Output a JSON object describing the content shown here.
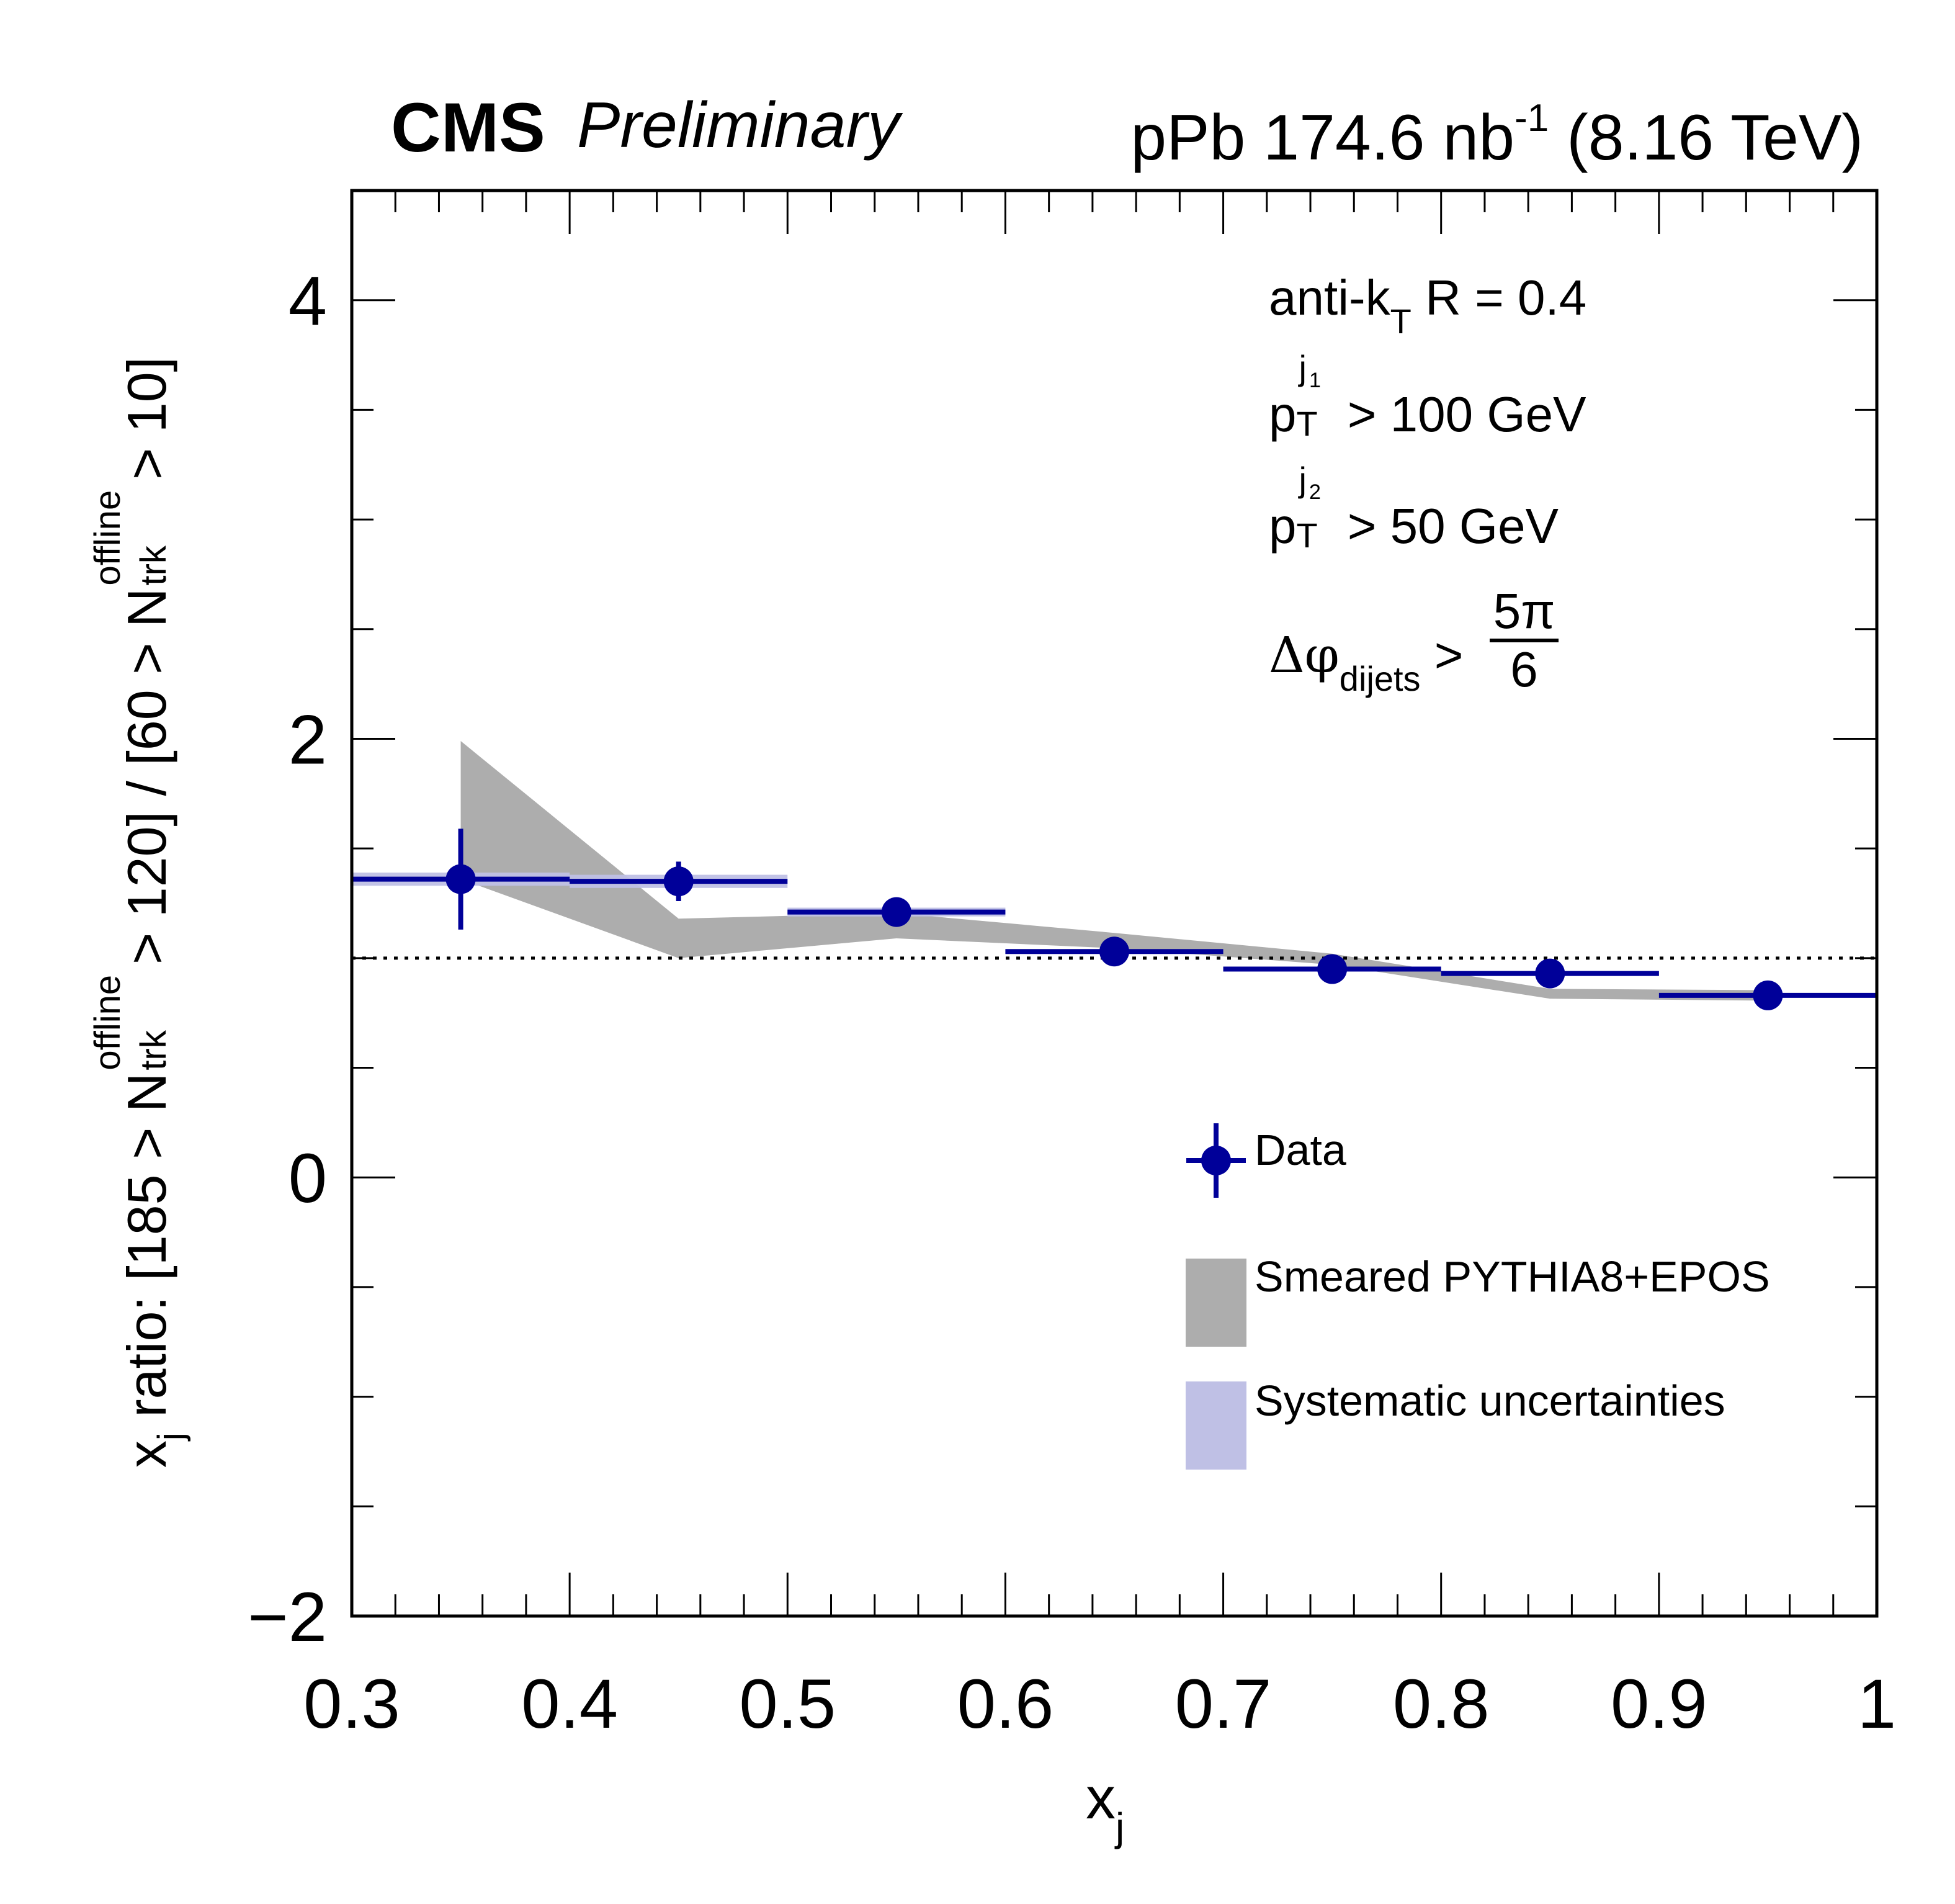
{
  "header": {
    "experiment": "CMS",
    "status": "Preliminary",
    "lumi_prefix": "pPb 174.6 nb",
    "lumi_exp": "-1",
    "lumi_suffix": " (8.16 TeV)"
  },
  "annotations": {
    "line1_main": "anti-k",
    "line1_sub": "T",
    "line1_rest": " R = 0.4",
    "line2_p": "p",
    "line2_sup": "j",
    "line2_supsub": "1",
    "line2_sub": "T",
    "line2_rest": " > 100 GeV",
    "line3_p": "p",
    "line3_sup": "j",
    "line3_supsub": "2",
    "line3_sub": "T",
    "line3_rest": " > 50 GeV",
    "line4_main": "Δφ",
    "line4_sub": "dijets",
    "line4_gt": " > ",
    "line4_num": "5π",
    "line4_den": "6"
  },
  "axis_labels": {
    "x_main": "x",
    "x_sub": "j",
    "y_part1": "x",
    "y_part1_sub": "j",
    "y_part2": " ratio: [185 > N",
    "y_sup": "offline",
    "y_sub": "trk",
    "y_part3": " > 120] / [60 > N",
    "y_part4": " > 10]"
  },
  "legend": {
    "data_label": "Data",
    "model_label": "Smeared PYTHIA8+EPOS",
    "syst_label": "Systematic uncertainties"
  },
  "colors": {
    "data": "#000099",
    "model_band": "#adadad",
    "syst_band": "#bfc0e5",
    "axis": "#000000"
  },
  "chart_data": {
    "type": "scatter",
    "title": "CMS Preliminary — pPb 174.6 nb^-1 (8.16 TeV)",
    "xlabel": "x_j",
    "ylabel": "x_j ratio: [185 > N_trk^offline > 120] / [60 > N_trk^offline > 10]",
    "xlim": [
      0.3,
      1.0
    ],
    "ylim": [
      -2,
      4.5
    ],
    "x_ticks": [
      0.3,
      0.4,
      0.5,
      0.6,
      0.7,
      0.8,
      0.9,
      1.0
    ],
    "x_tick_labels": [
      "0.3",
      "0.4",
      "0.5",
      "0.6",
      "0.7",
      "0.8",
      "0.9",
      "1"
    ],
    "x_minor_step": 0.02,
    "y_ticks": [
      -2,
      0,
      2,
      4
    ],
    "y_tick_labels": [
      "−2",
      "0",
      "2",
      "4"
    ],
    "y_minor_step": 0.5,
    "reference_line": 1.0,
    "grid": false,
    "legend_position": "bottom-right",
    "series": [
      {
        "name": "Data",
        "kind": "points",
        "x": [
          0.35,
          0.45,
          0.55,
          0.65,
          0.75,
          0.85,
          0.95
        ],
        "x_err": [
          0.05,
          0.05,
          0.05,
          0.05,
          0.05,
          0.05,
          0.05
        ],
        "y": [
          1.36,
          1.35,
          1.21,
          1.03,
          0.95,
          0.93,
          0.83
        ],
        "y_err_stat": [
          0.23,
          0.09,
          0.02,
          0.02,
          0.02,
          0.02,
          0.02
        ],
        "y_err_syst": [
          0.03,
          0.03,
          0.02,
          0.01,
          0.01,
          0.01,
          0.01
        ]
      },
      {
        "name": "Smeared PYTHIA8+EPOS",
        "kind": "band",
        "x": [
          0.35,
          0.45,
          0.55,
          0.65,
          0.75,
          0.85,
          0.95
        ],
        "y_low": [
          1.36,
          1.0,
          1.09,
          1.045,
          0.97,
          0.815,
          0.806
        ],
        "y_high": [
          1.99,
          1.18,
          1.205,
          1.115,
          1.02,
          0.86,
          0.854
        ]
      }
    ]
  }
}
